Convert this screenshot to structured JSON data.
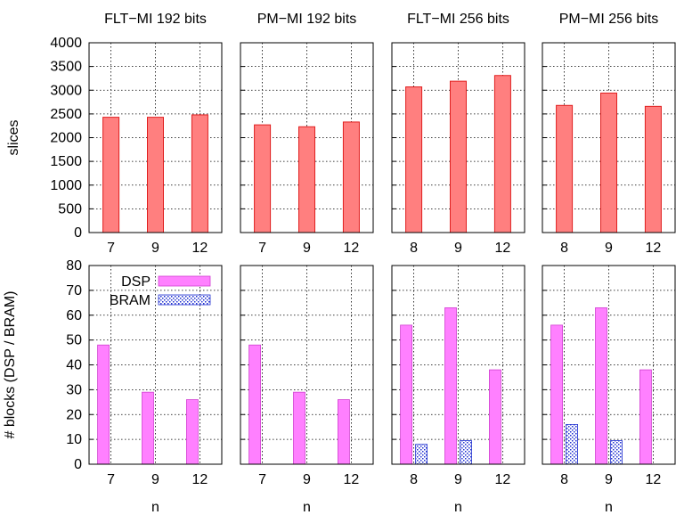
{
  "chart_data": {
    "type": "bar",
    "panel_titles": [
      "FLT−MI 192 bits",
      "PM−MI 192 bits",
      "FLT−MI 256 bits",
      "PM−MI 256 bits"
    ],
    "xlabel": "n",
    "rows": [
      {
        "ylabel": "slices",
        "ylim": [
          0,
          4000
        ],
        "yticks": [
          "0",
          "500",
          "1000",
          "1500",
          "2000",
          "2500",
          "3000",
          "3500",
          "4000"
        ],
        "panels": [
          {
            "categories": [
              "7",
              "9",
              "12"
            ],
            "series": [
              {
                "values": [
                  2430,
                  2430,
                  2480
                ]
              }
            ]
          },
          {
            "categories": [
              "7",
              "9",
              "12"
            ],
            "series": [
              {
                "values": [
                  2270,
                  2230,
                  2330
                ]
              }
            ]
          },
          {
            "categories": [
              "8",
              "9",
              "12"
            ],
            "series": [
              {
                "values": [
                  3070,
                  3190,
                  3310
                ]
              }
            ]
          },
          {
            "categories": [
              "8",
              "9",
              "12"
            ],
            "series": [
              {
                "values": [
                  2680,
                  2940,
                  2660
                ]
              }
            ]
          }
        ]
      },
      {
        "ylabel": "# blocks (DSP / BRAM)",
        "ylim": [
          0,
          80
        ],
        "yticks": [
          "0",
          "10",
          "20",
          "30",
          "40",
          "50",
          "60",
          "70",
          "80"
        ],
        "legend": [
          "DSP",
          "BRAM"
        ],
        "panels": [
          {
            "categories": [
              "7",
              "9",
              "12"
            ],
            "series": [
              {
                "name": "DSP",
                "values": [
                  48,
                  29,
                  26
                ]
              },
              {
                "name": "BRAM",
                "values": [
                  0,
                  0,
                  0
                ]
              }
            ]
          },
          {
            "categories": [
              "7",
              "9",
              "12"
            ],
            "series": [
              {
                "name": "DSP",
                "values": [
                  48,
                  29,
                  26
                ]
              },
              {
                "name": "BRAM",
                "values": [
                  0,
                  0,
                  0
                ]
              }
            ]
          },
          {
            "categories": [
              "8",
              "9",
              "12"
            ],
            "series": [
              {
                "name": "DSP",
                "values": [
                  56,
                  63,
                  38
                ]
              },
              {
                "name": "BRAM",
                "values": [
                  8,
                  9.5,
                  0
                ]
              }
            ]
          },
          {
            "categories": [
              "8",
              "9",
              "12"
            ],
            "series": [
              {
                "name": "DSP",
                "values": [
                  56,
                  63,
                  38
                ]
              },
              {
                "name": "BRAM",
                "values": [
                  16,
                  9.5,
                  0
                ]
              }
            ]
          }
        ]
      }
    ],
    "grid": true,
    "legend_position": "top-left",
    "colors": {
      "slices": "#ff7f7f",
      "slices_edge": "#e02020",
      "dsp": "#ff80ff",
      "dsp_edge": "#d040d0",
      "bram": "#2030d0"
    }
  }
}
